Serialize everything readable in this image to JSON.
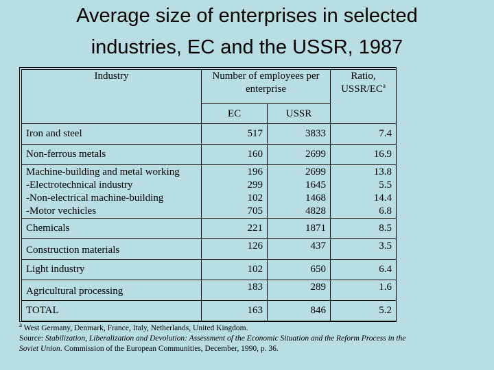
{
  "title": {
    "line1": "Average size of enterprises in selected",
    "line2": "industries, EC and the USSR, 1987"
  },
  "table": {
    "header": {
      "industry": "Industry",
      "employees_line1": "Number of employees per",
      "employees_line2": "enterprise",
      "ratio_line1": "Ratio,",
      "ratio_line2": "USSR/EC",
      "ratio_sup": "a",
      "ec": "EC",
      "ussr": "USSR"
    },
    "rows": [
      {
        "industry": "Iron and steel",
        "ec": "517",
        "ussr": "3833",
        "ratio": "7.4"
      },
      {
        "industry": "Non-ferrous metals",
        "ec": "160",
        "ussr": "2699",
        "ratio": "16.9"
      },
      {
        "industry": "Machine-building and metal working",
        "ec": "196",
        "ussr": "2699",
        "ratio": "13.8",
        "sub": [
          {
            "industry": "-Electrotechnical industry",
            "ec": "299",
            "ussr": "1645",
            "ratio": "5.5"
          },
          {
            "industry": "-Non-electrical machine-building",
            "ec": "102",
            "ussr": "1468",
            "ratio": "14.4"
          },
          {
            "industry": "-Motor vechicles",
            "ec": "705",
            "ussr": "4828",
            "ratio": "6.8"
          }
        ]
      },
      {
        "industry": "Chemicals",
        "ec": "221",
        "ussr": "1871",
        "ratio": "8.5"
      },
      {
        "industry": "Construction materials",
        "ec": "126",
        "ussr": "437",
        "ratio": "3.5"
      },
      {
        "industry": "Light industry",
        "ec": "102",
        "ussr": "650",
        "ratio": "6.4"
      },
      {
        "industry": "Agricultural processing",
        "ec": "183",
        "ussr": "289",
        "ratio": "1.6"
      },
      {
        "industry": "TOTAL",
        "ec": "163",
        "ussr": "846",
        "ratio": "5.2"
      }
    ]
  },
  "footnote": {
    "marker": "a",
    "text": " West Germany, Denmark, France, Italy, Netherlands, United Kingdom.",
    "source_label": "Source: ",
    "source_italic": "Stabilization, Liberalization and Devolution: Assessment of the Economic Situation and the Reform Process in the Soviet Union",
    "source_rest": ". Commission of the European Communities, December, 1990, p. 36."
  }
}
